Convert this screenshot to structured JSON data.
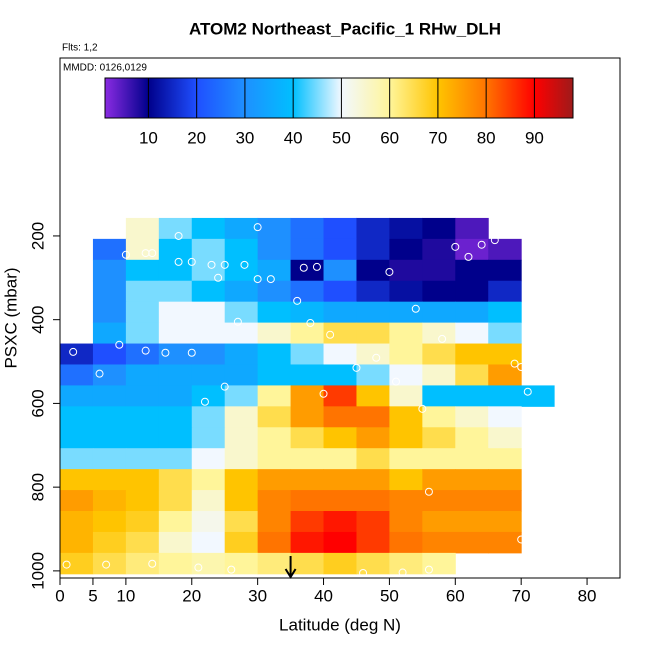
{
  "chart_data": {
    "type": "heatmap",
    "title": "ATOM2 Northeast_Pacific_1 RHw_DLH",
    "subtitle": "Flts: 1,2",
    "annotation": "MMDD: 0126,0129",
    "xlabel": "Latitude (deg N)",
    "ylabel": "PSXC (mbar)",
    "xlim": [
      0,
      85
    ],
    "xticks": [
      0,
      5,
      10,
      20,
      30,
      40,
      50,
      60,
      70,
      80
    ],
    "ylim": [
      1017,
      -225
    ],
    "yticks": [
      200,
      400,
      600,
      800,
      1000
    ],
    "colorbar_lim": [
      1,
      98
    ],
    "colorbar_ticks": [
      10,
      20,
      30,
      40,
      50,
      60,
      70,
      80,
      90
    ],
    "colorscale": [
      [
        1,
        "#8a2be2"
      ],
      [
        10,
        "#00008b"
      ],
      [
        20,
        "#1f4fff"
      ],
      [
        30,
        "#1e90ff"
      ],
      [
        40,
        "#00bfff"
      ],
      [
        50,
        "#f2f8ff"
      ],
      [
        60,
        "#fff59a"
      ],
      [
        70,
        "#ffc400"
      ],
      [
        80,
        "#ff7400"
      ],
      [
        90,
        "#ff0000"
      ],
      [
        98,
        "#9e1a1a"
      ]
    ],
    "x": [
      2.5,
      7.5,
      12.5,
      17.5,
      22.5,
      27.5,
      32.5,
      37.5,
      42.5,
      47.5,
      52.5,
      57.5,
      62.5,
      67.5,
      72.5
    ],
    "y": [
      182,
      232,
      282,
      332,
      382,
      432,
      482,
      532,
      582,
      632,
      682,
      732,
      782,
      832,
      882,
      932,
      982
    ],
    "z": [
      [
        null,
        null,
        55,
        45,
        40,
        35,
        30,
        25,
        20,
        15,
        12,
        10,
        5,
        null,
        null
      ],
      [
        null,
        25,
        55,
        40,
        45,
        40,
        30,
        25,
        20,
        15,
        10,
        8,
        3,
        5,
        null
      ],
      [
        null,
        30,
        40,
        40,
        45,
        40,
        35,
        10,
        30,
        10,
        8,
        8,
        10,
        10,
        null
      ],
      [
        null,
        30,
        45,
        45,
        40,
        35,
        30,
        25,
        20,
        15,
        12,
        10,
        10,
        15,
        null
      ],
      [
        null,
        30,
        45,
        50,
        50,
        45,
        40,
        38,
        35,
        35,
        35,
        35,
        35,
        40,
        null
      ],
      [
        null,
        35,
        45,
        50,
        50,
        50,
        55,
        60,
        65,
        65,
        60,
        55,
        50,
        45,
        null
      ],
      [
        15,
        20,
        25,
        30,
        30,
        35,
        40,
        45,
        50,
        55,
        60,
        65,
        70,
        70,
        null
      ],
      [
        25,
        30,
        35,
        35,
        35,
        35,
        40,
        40,
        40,
        45,
        50,
        55,
        65,
        75,
        null
      ],
      [
        35,
        35,
        35,
        35,
        40,
        45,
        60,
        75,
        85,
        70,
        55,
        40,
        40,
        40,
        40
      ],
      [
        40,
        40,
        40,
        40,
        45,
        55,
        65,
        75,
        80,
        80,
        70,
        60,
        55,
        50,
        null
      ],
      [
        40,
        40,
        40,
        40,
        45,
        55,
        60,
        65,
        70,
        75,
        70,
        65,
        60,
        55,
        null
      ],
      [
        45,
        45,
        45,
        45,
        50,
        55,
        60,
        60,
        60,
        65,
        60,
        60,
        60,
        60,
        null
      ],
      [
        70,
        70,
        70,
        65,
        60,
        70,
        75,
        75,
        75,
        75,
        70,
        75,
        75,
        75,
        null
      ],
      [
        75,
        72,
        70,
        65,
        55,
        70,
        78,
        80,
        80,
        80,
        78,
        78,
        78,
        78,
        null
      ],
      [
        72,
        70,
        68,
        60,
        52,
        65,
        78,
        85,
        88,
        85,
        78,
        75,
        75,
        75,
        null
      ],
      [
        72,
        68,
        65,
        55,
        50,
        68,
        80,
        88,
        90,
        85,
        80,
        78,
        78,
        78,
        null
      ],
      [
        68,
        65,
        62,
        60,
        58,
        60,
        62,
        65,
        68,
        65,
        62,
        60,
        null,
        null,
        null
      ]
    ],
    "points": {
      "x": [
        1,
        7,
        14,
        21,
        26,
        46,
        52,
        56,
        70,
        56,
        71,
        70,
        69,
        40,
        22,
        25,
        2,
        6,
        9,
        13,
        16,
        20,
        45,
        48,
        51,
        55,
        27,
        38,
        41,
        58,
        54,
        36,
        30,
        24,
        32,
        37,
        39,
        50,
        18,
        30,
        60,
        62,
        64,
        66,
        4,
        13,
        14,
        10,
        18,
        20,
        23,
        25,
        28
      ],
      "y": [
        985,
        985,
        983,
        992,
        997,
        1005,
        1004,
        997,
        925,
        811,
        572,
        513,
        505,
        577,
        596,
        560,
        477,
        529,
        460,
        474,
        479,
        479,
        515,
        491,
        548,
        613,
        405,
        408,
        436,
        446,
        374,
        355,
        303,
        300,
        303,
        276,
        274,
        286,
        200,
        179,
        226,
        250,
        221,
        210,
        241,
        241,
        241,
        245,
        262,
        262,
        269,
        269,
        269
      ]
    },
    "marker": {
      "x": 35
    }
  }
}
